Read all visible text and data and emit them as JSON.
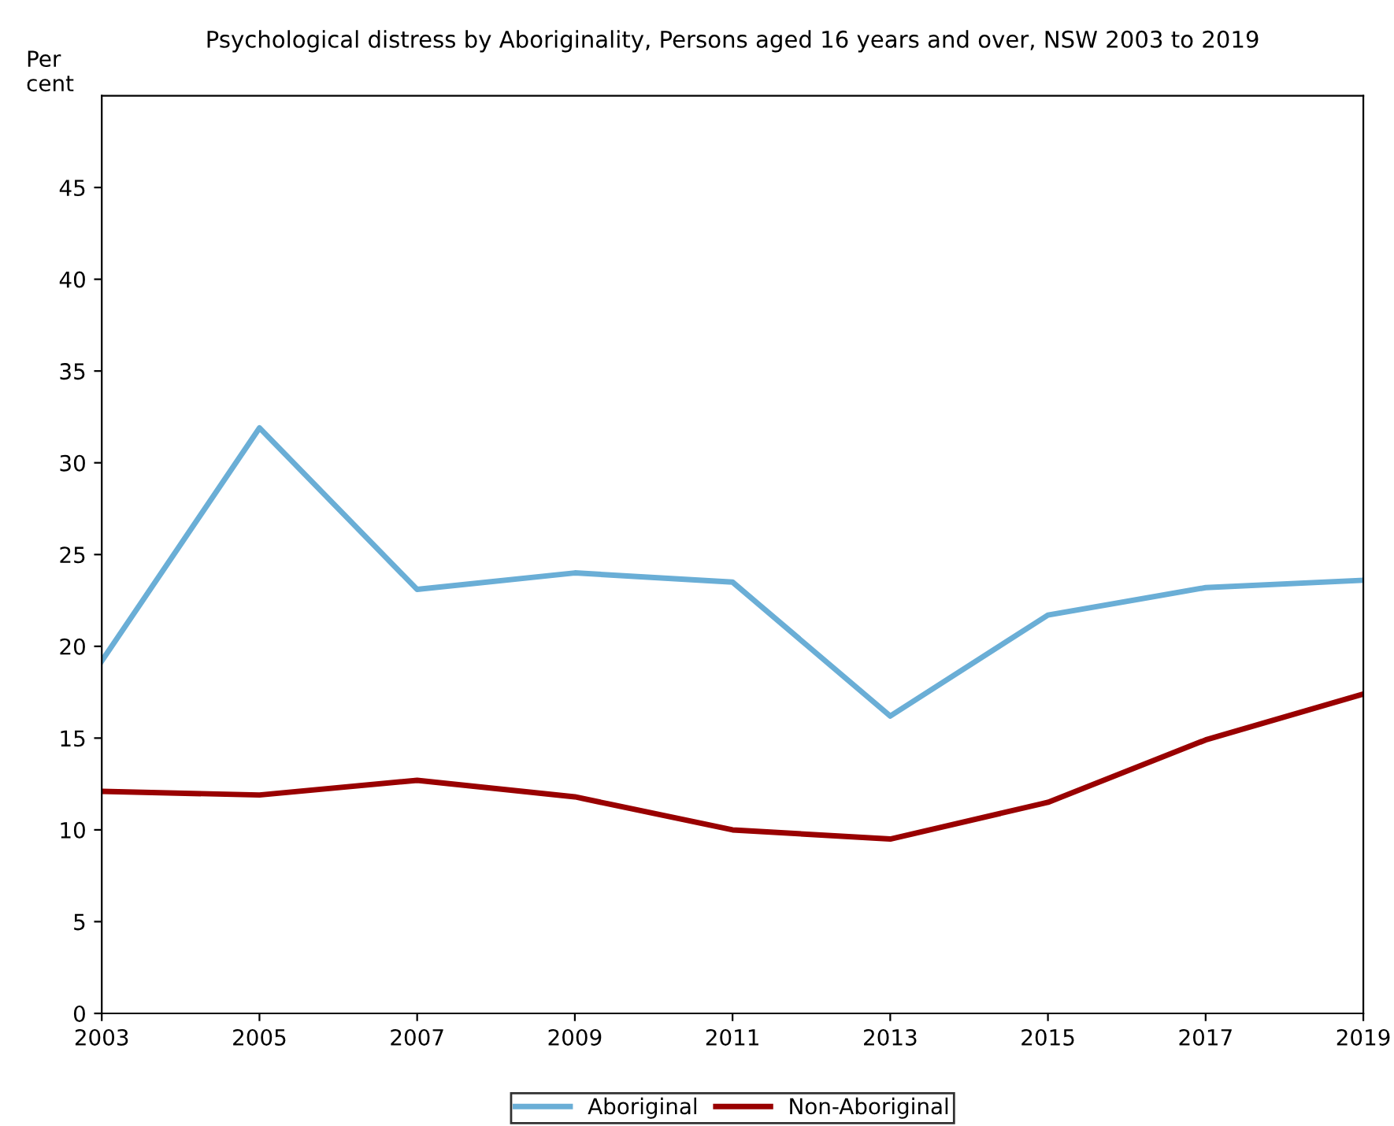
{
  "chart_data": {
    "type": "line",
    "title": "Psychological distress by Aboriginality, Persons aged 16 years and over, NSW 2003 to 2019",
    "ylabel": "Per\ncent",
    "x": [
      2003,
      2005,
      2007,
      2009,
      2011,
      2013,
      2015,
      2017,
      2019
    ],
    "series": [
      {
        "name": "Aboriginal",
        "color": "#6aaed6",
        "values": [
          19.2,
          31.9,
          23.1,
          24.0,
          23.5,
          16.2,
          21.7,
          23.2,
          23.6
        ]
      },
      {
        "name": "Non-Aboriginal",
        "color": "#990000",
        "values": [
          12.1,
          11.9,
          12.7,
          11.8,
          10.0,
          9.5,
          11.5,
          14.9,
          17.4
        ]
      }
    ],
    "xlim": [
      2003,
      2019
    ],
    "xticks": [
      2003,
      2005,
      2007,
      2009,
      2011,
      2013,
      2015,
      2017,
      2019
    ],
    "ylim": [
      0,
      50
    ],
    "yticks": [
      0,
      5,
      10,
      15,
      20,
      25,
      30,
      35,
      40,
      45
    ],
    "grid": false,
    "legend": "bottom",
    "marker": "none",
    "line_style": "solid"
  }
}
